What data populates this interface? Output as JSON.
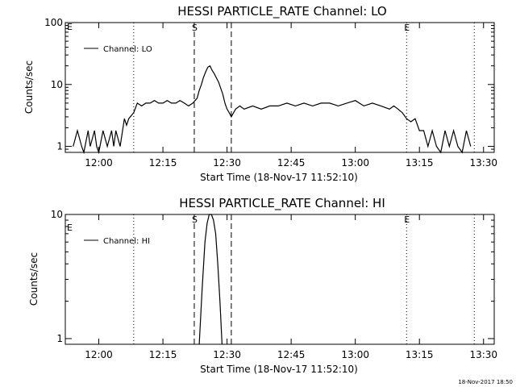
{
  "footer": {
    "timestamp": "18-Nov-2017 18:50"
  },
  "chart_data": [
    {
      "type": "line",
      "title": "HESSI PARTICLE_RATE Channel: LO",
      "xlabel": "Start Time (18-Nov-17 11:52:10)",
      "ylabel": "Counts/sec",
      "y_scale": "log",
      "xlim": [
        "11:52:10",
        "13:32:30"
      ],
      "ylim": [
        0.8,
        100
      ],
      "x_ticks": [
        "12:00",
        "12:15",
        "12:30",
        "12:45",
        "13:00",
        "13:15",
        "13:30"
      ],
      "y_ticks": [
        "1",
        "10",
        "100"
      ],
      "legend": {
        "position": "top-left",
        "entries": [
          "Channel: LO"
        ]
      },
      "event_lines": [
        {
          "time": "12:08:10",
          "style": "dotted"
        },
        {
          "time": "12:22:20",
          "style": "dashed",
          "label": "S"
        },
        {
          "time": "12:31:00",
          "style": "dashed"
        },
        {
          "time": "13:12:00",
          "style": "dotted",
          "label": "E"
        },
        {
          "time": "13:27:50",
          "style": "dotted"
        }
      ],
      "corner_label": "E",
      "series": [
        {
          "name": "Channel: LO",
          "x": [
            "11:54:00",
            "11:55:00",
            "11:56:00",
            "11:56:30",
            "11:57:30",
            "11:58:00",
            "11:59:00",
            "11:59:30",
            "12:00:00",
            "12:01:00",
            "12:02:00",
            "12:03:00",
            "12:03:30",
            "12:04:00",
            "12:05:00",
            "12:06:00",
            "12:06:30",
            "12:07:00",
            "12:08:10",
            "12:09:00",
            "12:10:00",
            "12:11:00",
            "12:12:00",
            "12:13:00",
            "12:14:00",
            "12:15:00",
            "12:16:00",
            "12:17:00",
            "12:18:00",
            "12:19:00",
            "12:20:00",
            "12:21:00",
            "12:22:00",
            "12:23:00",
            "12:23:30",
            "12:24:00",
            "12:24:30",
            "12:25:00",
            "12:25:30",
            "12:26:00",
            "12:26:30",
            "12:27:00",
            "12:28:00",
            "12:29:00",
            "12:29:30",
            "12:30:00",
            "12:30:30",
            "12:31:00",
            "12:32:00",
            "12:33:00",
            "12:34:00",
            "12:36:00",
            "12:38:00",
            "12:40:00",
            "12:42:00",
            "12:44:00",
            "12:46:00",
            "12:48:00",
            "12:50:00",
            "12:52:00",
            "12:54:00",
            "12:56:00",
            "12:58:00",
            "13:00:00",
            "13:02:00",
            "13:04:00",
            "13:06:00",
            "13:08:00",
            "13:09:00",
            "13:10:00",
            "13:11:00",
            "13:12:00",
            "13:13:00",
            "13:14:00",
            "13:15:00",
            "13:16:00",
            "13:17:00",
            "13:18:00",
            "13:19:00",
            "13:20:00",
            "13:21:00",
            "13:22:00",
            "13:23:00",
            "13:24:00",
            "13:25:00",
            "13:26:00",
            "13:27:00"
          ],
          "y": [
            1,
            1.8,
            1,
            0.8,
            1.8,
            1,
            1.8,
            1,
            0.8,
            1.8,
            1,
            1.8,
            1,
            1.8,
            1,
            2.8,
            2.2,
            2.8,
            3.5,
            5,
            4.5,
            5,
            5,
            5.5,
            5,
            5,
            5.5,
            5,
            5,
            5.5,
            5,
            4.5,
            5,
            6,
            8,
            10,
            13,
            16,
            19,
            20,
            17,
            15,
            11,
            7,
            5,
            4,
            3.5,
            3,
            4,
            4.5,
            4,
            4.5,
            4,
            4.5,
            4.5,
            5,
            4.5,
            5,
            4.5,
            5,
            5,
            4.5,
            5,
            5.5,
            4.5,
            5,
            4.5,
            4,
            4.5,
            4,
            3.5,
            2.8,
            2.5,
            2.8,
            1.8,
            1.8,
            1,
            1.8,
            1,
            0.8,
            1.8,
            1,
            1.8,
            1,
            0.8,
            1.8,
            1
          ]
        }
      ]
    },
    {
      "type": "line",
      "title": "HESSI PARTICLE_RATE Channel: HI",
      "xlabel": "Start Time (18-Nov-17 11:52:10)",
      "ylabel": "Counts/sec",
      "y_scale": "log",
      "xlim": [
        "11:52:10",
        "13:32:30"
      ],
      "ylim": [
        0.9,
        10
      ],
      "x_ticks": [
        "12:00",
        "12:15",
        "12:30",
        "12:45",
        "13:00",
        "13:15",
        "13:30"
      ],
      "y_ticks": [
        "1",
        "10"
      ],
      "legend": {
        "position": "top-left",
        "entries": [
          "Channel: HI"
        ]
      },
      "event_lines": [
        {
          "time": "12:08:10",
          "style": "dotted"
        },
        {
          "time": "12:22:20",
          "style": "dashed",
          "label": "S"
        },
        {
          "time": "12:31:00",
          "style": "dashed"
        },
        {
          "time": "13:12:00",
          "style": "dotted",
          "label": "E"
        },
        {
          "time": "13:27:50",
          "style": "dotted"
        }
      ],
      "corner_label": "E",
      "series": [
        {
          "name": "Channel: HI",
          "x": [
            "12:23:30",
            "12:24:10",
            "12:24:50",
            "12:25:20",
            "12:25:50",
            "12:26:20",
            "12:26:50",
            "12:27:20",
            "12:27:50",
            "12:28:20",
            "12:28:50"
          ],
          "y": [
            0.9,
            2.5,
            6,
            8.5,
            10,
            10,
            9,
            7,
            4,
            2,
            0.9
          ]
        }
      ]
    }
  ]
}
